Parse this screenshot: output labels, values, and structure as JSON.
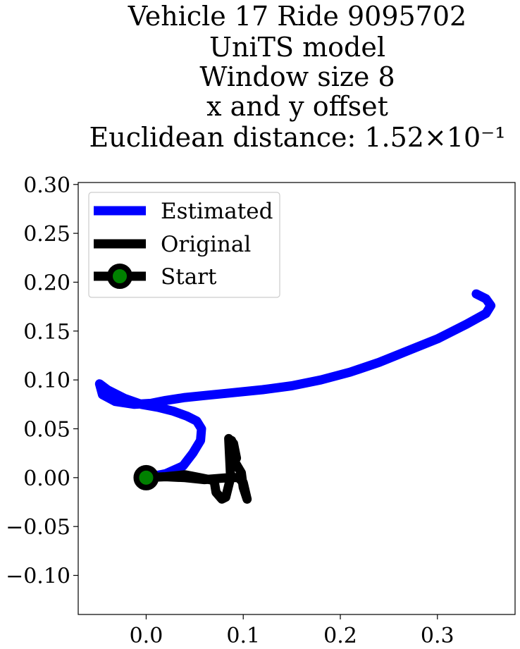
{
  "chart_data": {
    "type": "line",
    "title_lines": [
      "Vehicle 17 Ride 9095702",
      "UniTS model",
      "Window size 8",
      "x and y offset",
      "Euclidean distance: 1.52×10⁻¹"
    ],
    "xlabel": "",
    "ylabel": "",
    "xlim": [
      -0.07,
      0.38
    ],
    "ylim": [
      -0.14,
      0.302
    ],
    "x_ticks": [
      0.0,
      0.1,
      0.2,
      0.3
    ],
    "x_tick_labels": [
      "0.0",
      "0.1",
      "0.2",
      "0.3"
    ],
    "y_ticks": [
      -0.1,
      -0.05,
      0.0,
      0.05,
      0.1,
      0.15,
      0.2,
      0.25,
      0.3
    ],
    "y_tick_labels": [
      "−0.10",
      "−0.05",
      "0.00",
      "0.05",
      "0.10",
      "0.15",
      "0.20",
      "0.25",
      "0.30"
    ],
    "grid": false,
    "legend_position": "upper-left",
    "series": [
      {
        "name": "Estimated",
        "color": "#0000ff",
        "x": [
          0.0,
          0.02,
          0.038,
          0.048,
          0.056,
          0.057,
          0.052,
          0.042,
          0.028,
          0.012,
          -0.005,
          -0.022,
          -0.04,
          -0.048,
          -0.045,
          -0.032,
          -0.012,
          0.005,
          0.02,
          0.04,
          0.06,
          0.09,
          0.12,
          0.15,
          0.18,
          0.21,
          0.24,
          0.27,
          0.3,
          0.33,
          0.35,
          0.355,
          0.35,
          0.34
        ],
        "y": [
          0.0,
          0.004,
          0.012,
          0.025,
          0.038,
          0.05,
          0.058,
          0.063,
          0.068,
          0.072,
          0.075,
          0.081,
          0.09,
          0.096,
          0.085,
          0.078,
          0.075,
          0.076,
          0.079,
          0.082,
          0.084,
          0.087,
          0.09,
          0.094,
          0.1,
          0.108,
          0.118,
          0.13,
          0.142,
          0.157,
          0.168,
          0.176,
          0.183,
          0.188
        ]
      },
      {
        "name": "Original",
        "color": "#000000",
        "x": [
          0.0,
          0.02,
          0.04,
          0.055,
          0.07,
          0.072,
          0.078,
          0.082,
          0.087,
          0.085,
          0.09,
          0.093,
          0.088,
          0.092,
          0.098,
          0.1,
          0.104,
          0.1,
          0.095,
          0.085,
          0.06,
          0.04,
          0.02,
          0.0
        ],
        "y": [
          0.0,
          0.001,
          0.003,
          0.0,
          -0.003,
          -0.015,
          -0.022,
          -0.02,
          0.0,
          0.04,
          0.035,
          0.02,
          0.038,
          0.015,
          0.005,
          -0.01,
          -0.022,
          -0.005,
          0.0,
          0.0,
          -0.002,
          0.0,
          0.001,
          0.0
        ]
      },
      {
        "name": "Start",
        "color": "#008000",
        "x": [
          0.0
        ],
        "y": [
          0.0
        ]
      }
    ]
  }
}
